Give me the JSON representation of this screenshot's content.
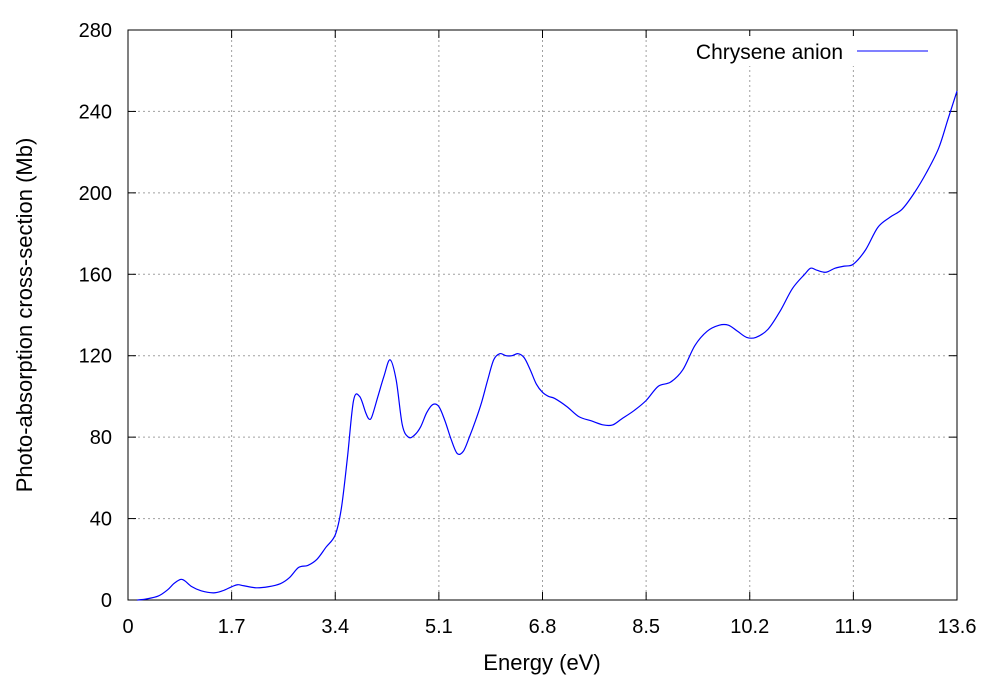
{
  "chart_data": {
    "type": "line",
    "title": "",
    "xlabel": "Energy (eV)",
    "ylabel": "Photo-absorption cross-section (Mb)",
    "xlim": [
      0,
      13.6
    ],
    "ylim": [
      0,
      280
    ],
    "xticks": [
      0,
      1.7,
      3.4,
      5.1,
      6.8,
      8.5,
      10.2,
      11.9,
      13.6
    ],
    "xtick_labels": [
      "0",
      "1.7",
      "3.4",
      "5.1",
      "6.8",
      "8.5",
      "10.2",
      "11.9",
      "13.6"
    ],
    "yticks": [
      0,
      40,
      80,
      120,
      160,
      200,
      240,
      280
    ],
    "ytick_labels": [
      "0",
      "40",
      "80",
      "120",
      "160",
      "200",
      "240",
      "280"
    ],
    "grid": true,
    "legend_position": "top-right",
    "series": [
      {
        "name": "Chrysene anion",
        "color": "#0000ff",
        "x": [
          0.15,
          0.3,
          0.5,
          0.65,
          0.75,
          0.85,
          0.9,
          0.95,
          1.05,
          1.2,
          1.4,
          1.55,
          1.7,
          1.8,
          1.9,
          2.1,
          2.3,
          2.5,
          2.65,
          2.8,
          2.95,
          3.1,
          3.25,
          3.4,
          3.5,
          3.6,
          3.7,
          3.8,
          3.9,
          3.95,
          4.0,
          4.1,
          4.2,
          4.3,
          4.4,
          4.5,
          4.6,
          4.7,
          4.8,
          4.9,
          5.0,
          5.1,
          5.2,
          5.3,
          5.4,
          5.5,
          5.6,
          5.7,
          5.8,
          5.9,
          6.0,
          6.1,
          6.2,
          6.3,
          6.4,
          6.5,
          6.6,
          6.7,
          6.8,
          6.9,
          7.0,
          7.2,
          7.4,
          7.6,
          7.8,
          7.95,
          8.1,
          8.3,
          8.5,
          8.7,
          8.9,
          9.1,
          9.3,
          9.5,
          9.7,
          9.85,
          10.0,
          10.15,
          10.3,
          10.5,
          10.7,
          10.9,
          11.1,
          11.2,
          11.3,
          11.45,
          11.6,
          11.75,
          11.9,
          12.1,
          12.3,
          12.5,
          12.7,
          12.9,
          13.1,
          13.3,
          13.45,
          13.6
        ],
        "values": [
          0,
          0.5,
          2,
          5,
          8,
          10,
          10,
          9,
          6.5,
          4.5,
          3.5,
          4.5,
          6.5,
          7.5,
          7,
          6,
          6.5,
          8,
          11,
          16,
          17,
          20,
          26,
          32,
          45,
          70,
          98,
          100,
          92,
          89,
          90,
          100,
          110,
          118,
          108,
          86,
          80,
          81,
          85,
          92,
          96,
          95,
          88,
          79,
          72,
          73,
          80,
          88,
          97,
          108,
          118,
          121,
          120,
          120,
          121,
          119,
          113,
          106,
          102,
          100,
          99,
          95,
          90,
          88,
          86,
          86,
          89,
          93,
          98,
          105,
          107,
          113,
          125,
          132,
          135,
          135,
          132,
          129,
          129,
          133,
          142,
          153,
          160,
          163,
          162,
          161,
          163,
          164,
          165,
          172,
          183,
          188,
          192,
          200,
          210,
          222,
          236,
          250
        ]
      }
    ]
  }
}
